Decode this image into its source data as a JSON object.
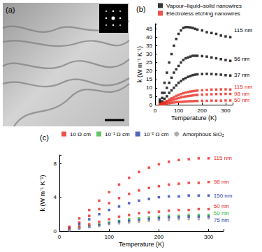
{
  "image_panel": {
    "label": "(a)"
  },
  "chart_data": [
    {
      "type": "scatter",
      "title": "(b)",
      "x_label": "Temperature (K)",
      "y_label": "k (W m⁻¹ K⁻¹)",
      "xlim": [
        0,
        330
      ],
      "xticks": [
        0,
        100,
        200,
        300
      ],
      "ylim": [
        0,
        48
      ],
      "yticks": [
        0,
        5,
        10,
        15,
        20,
        25,
        30,
        35,
        40,
        45
      ],
      "grid": false,
      "legend": "top",
      "series": [
        {
          "name": "Vapour–liquid–solid nanowires",
          "color": "#000000",
          "marker": "square",
          "x": [
            20,
            30,
            40,
            50,
            60,
            70,
            80,
            90,
            100,
            110,
            120,
            130,
            140,
            150,
            160,
            170,
            180,
            200,
            220,
            240,
            260,
            280,
            300,
            320
          ],
          "values": [
            3,
            7,
            13,
            19,
            25,
            30,
            35,
            39,
            42,
            44,
            45.5,
            46,
            46,
            45.8,
            45.5,
            45,
            44.5,
            44,
            43,
            42.5,
            42,
            41,
            40.5,
            40
          ]
        },
        {
          "name": "Vapour–liquid–solid nanowires",
          "color": "#000000",
          "marker": "square",
          "x": [
            20,
            30,
            40,
            50,
            60,
            70,
            80,
            90,
            100,
            110,
            120,
            130,
            140,
            150,
            160,
            170,
            180,
            200,
            220,
            240,
            260,
            280,
            300,
            320
          ],
          "values": [
            2,
            4,
            7,
            10,
            13,
            16,
            19,
            21,
            23,
            25,
            26.5,
            27.5,
            28,
            28.5,
            29,
            29,
            29,
            28.8,
            28.5,
            28,
            27.5,
            27,
            26.5,
            26
          ]
        },
        {
          "name": "Vapour–liquid–solid nanowires",
          "color": "#000000",
          "marker": "square",
          "x": [
            20,
            30,
            40,
            50,
            60,
            70,
            80,
            90,
            100,
            110,
            120,
            130,
            140,
            150,
            160,
            170,
            180,
            200,
            220,
            240,
            260,
            280,
            300,
            320
          ],
          "values": [
            1,
            2,
            3.5,
            5,
            7,
            8.5,
            10,
            11.5,
            13,
            14,
            15,
            15.8,
            16.5,
            17,
            17.5,
            17.8,
            18,
            18.2,
            18.3,
            18.2,
            18,
            17.8,
            17.5,
            17.3
          ]
        },
        {
          "name": "Electroless etching nanowires",
          "color": "#e8281e",
          "marker": "square",
          "x": [
            20,
            30,
            40,
            50,
            60,
            70,
            80,
            90,
            100,
            110,
            120,
            130,
            140,
            150,
            160,
            170,
            180,
            200,
            220,
            240,
            260,
            280,
            300,
            320
          ],
          "values": [
            0.5,
            1,
            1.5,
            2.2,
            3,
            3.8,
            4.5,
            5.2,
            5.8,
            6.3,
            6.8,
            7.2,
            7.5,
            7.8,
            8,
            8.2,
            8.4,
            8.6,
            8.8,
            9,
            9,
            9.1,
            9.1,
            9
          ]
        },
        {
          "name": "Electroless etching nanowires",
          "color": "#e8281e",
          "marker": "square",
          "x": [
            20,
            30,
            40,
            50,
            60,
            70,
            80,
            90,
            100,
            110,
            120,
            130,
            140,
            150,
            160,
            170,
            180,
            200,
            220,
            240,
            260,
            280,
            300,
            320
          ],
          "values": [
            0.3,
            0.6,
            1,
            1.5,
            2,
            2.5,
            3,
            3.5,
            3.9,
            4.3,
            4.6,
            4.9,
            5.1,
            5.3,
            5.5,
            5.7,
            5.8,
            6,
            6.1,
            6.2,
            6.3,
            6.3,
            6.4,
            6.4
          ]
        },
        {
          "name": "Electroless etching nanowires",
          "color": "#e8281e",
          "marker": "square",
          "x": [
            20,
            30,
            40,
            50,
            60,
            70,
            80,
            90,
            100,
            110,
            120,
            130,
            140,
            150,
            160,
            170,
            180,
            200,
            220,
            240,
            260,
            280,
            300,
            320
          ],
          "values": [
            0.2,
            0.3,
            0.5,
            0.7,
            0.9,
            1.1,
            1.3,
            1.5,
            1.6,
            1.7,
            1.8,
            1.9,
            2,
            2.1,
            2.1,
            2.2,
            2.2,
            2.3,
            2.3,
            2.4,
            2.4,
            2.4,
            2.5,
            2.5
          ]
        }
      ],
      "annotations": [
        {
          "text": "115 nm",
          "x": 336,
          "y": 44,
          "color": "#000000"
        },
        {
          "text": "56 nm",
          "x": 336,
          "y": 27,
          "color": "#000000"
        },
        {
          "text": "37 nm",
          "x": 336,
          "y": 17.5,
          "color": "#000000"
        },
        {
          "text": "115 nm",
          "x": 336,
          "y": 10.5,
          "color": "#e8281e"
        },
        {
          "text": "98 nm",
          "x": 336,
          "y": 6.5,
          "color": "#e8281e"
        },
        {
          "text": "50 nm",
          "x": 336,
          "y": 2.5,
          "color": "#e8281e"
        }
      ]
    },
    {
      "type": "scatter",
      "title": "(c)",
      "x_label": "Temperature (K)",
      "y_label": "k (W m⁻¹ K⁻¹)",
      "xlim": [
        0,
        330
      ],
      "xticks": [
        0,
        100,
        200,
        300
      ],
      "ylim": [
        0,
        9
      ],
      "yticks": [
        0,
        4,
        8
      ],
      "grid": false,
      "legend": "top",
      "series": [
        {
          "name": "10 Ω cm",
          "color": "#e8281e",
          "marker": "square",
          "x": [
            20,
            40,
            60,
            80,
            100,
            120,
            140,
            160,
            180,
            200,
            220,
            240,
            260,
            280,
            300
          ],
          "values": [
            0.5,
            1.5,
            2.5,
            3.6,
            4.6,
            5.5,
            6.3,
            7,
            7.5,
            7.9,
            8.2,
            8.4,
            8.5,
            8.6,
            8.6
          ]
        },
        {
          "name": "10 Ω cm",
          "color": "#e8281e",
          "marker": "square",
          "x": [
            20,
            40,
            60,
            80,
            100,
            120,
            140,
            160,
            180,
            200,
            220,
            240,
            260,
            280,
            300
          ],
          "values": [
            0.4,
            1,
            1.8,
            2.6,
            3.3,
            3.9,
            4.4,
            4.8,
            5.1,
            5.3,
            5.5,
            5.6,
            5.7,
            5.7,
            5.8
          ]
        },
        {
          "name": "10⁻¹ Ω cm",
          "color": "#3cb83c",
          "marker": "square",
          "x": [
            20,
            40,
            60,
            80,
            100,
            120,
            140,
            160,
            180,
            200,
            220,
            240,
            260,
            280,
            300
          ],
          "values": [
            0.15,
            0.4,
            0.6,
            0.8,
            1,
            1.2,
            1.4,
            1.5,
            1.6,
            1.7,
            1.8,
            1.8,
            1.9,
            1.9,
            1.9
          ]
        },
        {
          "name": "10⁻² Ω cm",
          "color": "#2b3fb0",
          "marker": "square",
          "x": [
            20,
            40,
            60,
            80,
            100,
            120,
            140,
            160,
            180,
            200,
            220,
            240,
            260,
            280,
            300
          ],
          "values": [
            0.3,
            0.8,
            1.4,
            2,
            2.5,
            2.9,
            3.3,
            3.6,
            3.8,
            4,
            4.1,
            4.1,
            4.2,
            4.2,
            4.2
          ]
        },
        {
          "name": "10⁻² Ω cm",
          "color": "#2b3fb0",
          "marker": "square",
          "x": [
            20,
            40,
            60,
            80,
            100,
            120,
            140,
            160,
            180,
            200,
            220,
            240,
            260,
            280,
            300
          ],
          "values": [
            0.1,
            0.3,
            0.5,
            0.7,
            0.9,
            1.1,
            1.2,
            1.3,
            1.4,
            1.5,
            1.6,
            1.6,
            1.7,
            1.7,
            1.7
          ]
        },
        {
          "name": "10 Ω cm",
          "color": "#e8281e",
          "marker": "square",
          "x": [
            20,
            40,
            60,
            80,
            100,
            120,
            140,
            160,
            180,
            200,
            220,
            240,
            260,
            280,
            300
          ],
          "values": [
            0.2,
            0.5,
            0.8,
            1.1,
            1.4,
            1.7,
            1.9,
            2.1,
            2.2,
            2.3,
            2.4,
            2.5,
            2.5,
            2.6,
            2.6
          ]
        },
        {
          "name": "Amorphous SiO₂",
          "color": "#9a9a9a",
          "marker": "circle",
          "x": [
            20,
            40,
            60,
            80,
            100,
            120,
            140,
            160,
            180,
            200,
            220,
            240,
            260,
            280,
            300
          ],
          "values": [
            0.1,
            0.3,
            0.5,
            0.6,
            0.8,
            0.9,
            1,
            1.1,
            1.2,
            1.3,
            1.3,
            1.4,
            1.4,
            1.4,
            1.5
          ]
        }
      ],
      "annotations": [
        {
          "text": "115 nm",
          "x": 310,
          "y": 8.6,
          "color": "#e8281e"
        },
        {
          "text": "98 nm",
          "x": 310,
          "y": 5.8,
          "color": "#e8281e"
        },
        {
          "text": "150 nm",
          "x": 310,
          "y": 4.2,
          "color": "#2b3fb0"
        },
        {
          "text": "50 nm",
          "x": 310,
          "y": 2.9,
          "color": "#e8281e"
        },
        {
          "text": "50 nm",
          "x": 310,
          "y": 2.1,
          "color": "#3cb83c"
        },
        {
          "text": "75 nm",
          "x": 310,
          "y": 1.3,
          "color": "#2b3fb0"
        }
      ]
    }
  ]
}
